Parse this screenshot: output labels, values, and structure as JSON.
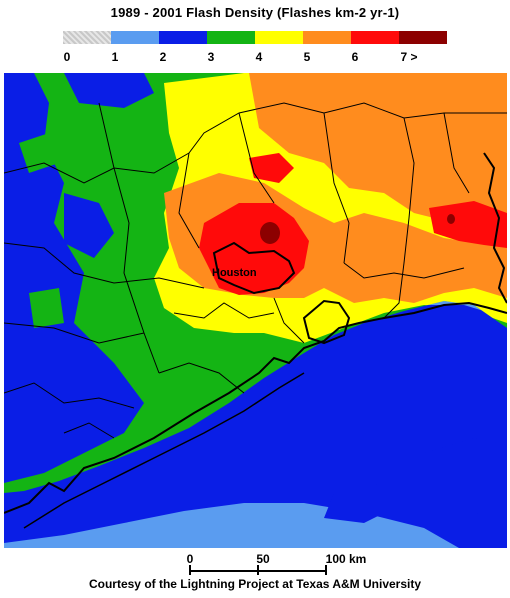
{
  "title": "1989 - 2001 Flash Density (Flashes km-2 yr-1)",
  "legend": {
    "colors": [
      "#d0d0d0",
      "#5a9cf0",
      "#0a1ee6",
      "#14b414",
      "#ffff00",
      "#ff8c1e",
      "#ff0a0a",
      "#8c0000"
    ],
    "labels": [
      "0",
      "1",
      "2",
      "3",
      "4",
      "5",
      "6",
      "7 >"
    ]
  },
  "map": {
    "city_label": "Houston"
  },
  "scale": {
    "labels": [
      "0",
      "50",
      "100 km"
    ]
  },
  "credit": "Courtesy of the Lightning Project at Texas A&M University"
}
